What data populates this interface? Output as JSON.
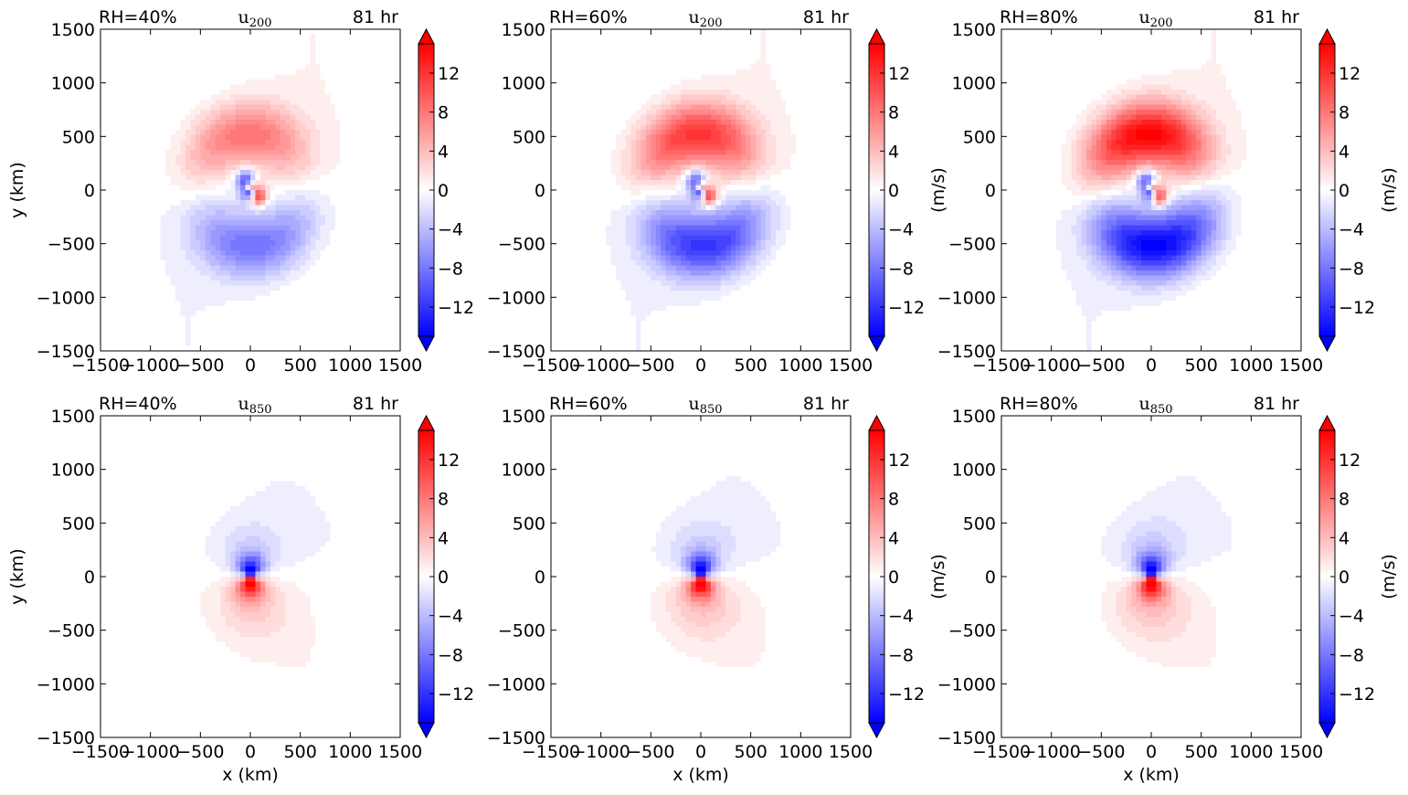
{
  "chart_data": [
    {
      "type": "heatmap",
      "rh_label": "RH=40%",
      "var_base": "u",
      "var_sub": "200",
      "time_label": "81 hr",
      "xlabel": "",
      "ylabel": "y (km)",
      "cbar_label": "",
      "xlim": [
        -1500,
        1500
      ],
      "ylim": [
        -1500,
        1500
      ],
      "xticks": [
        "−1500",
        "−1000",
        "−500",
        "0",
        "500",
        "1000",
        "1500"
      ],
      "yticks": [
        "−1500",
        "−1000",
        "−500",
        "0",
        "500",
        "1000",
        "1500"
      ],
      "vmin": -15,
      "vmax": 15,
      "cbar_ticks": [
        "−12",
        "−8",
        "−4",
        "0",
        "4",
        "8",
        "12"
      ],
      "level": 200,
      "strength": 0.55
    },
    {
      "type": "heatmap",
      "rh_label": "RH=60%",
      "var_base": "u",
      "var_sub": "200",
      "time_label": "81 hr",
      "xlabel": "",
      "ylabel": "",
      "cbar_label": "(m/s)",
      "xlim": [
        -1500,
        1500
      ],
      "ylim": [
        -1500,
        1500
      ],
      "xticks": [
        "−1500",
        "−1000",
        "−500",
        "0",
        "500",
        "1000",
        "1500"
      ],
      "yticks": [
        "−1500",
        "−1000",
        "−500",
        "0",
        "500",
        "1000",
        "1500"
      ],
      "vmin": -15,
      "vmax": 15,
      "cbar_ticks": [
        "−12",
        "−8",
        "−4",
        "0",
        "4",
        "8",
        "12"
      ],
      "level": 200,
      "strength": 0.8
    },
    {
      "type": "heatmap",
      "rh_label": "RH=80%",
      "var_base": "u",
      "var_sub": "200",
      "time_label": "81 hr",
      "xlabel": "",
      "ylabel": "",
      "cbar_label": "(m/s)",
      "xlim": [
        -1500,
        1500
      ],
      "ylim": [
        -1500,
        1500
      ],
      "xticks": [
        "−1500",
        "−1000",
        "−500",
        "0",
        "500",
        "1000",
        "1500"
      ],
      "yticks": [
        "−1500",
        "−1000",
        "−500",
        "0",
        "500",
        "1000",
        "1500"
      ],
      "vmin": -15,
      "vmax": 15,
      "cbar_ticks": [
        "−12",
        "−8",
        "−4",
        "0",
        "4",
        "8",
        "12"
      ],
      "level": 200,
      "strength": 1.0
    },
    {
      "type": "heatmap",
      "rh_label": "RH=40%",
      "var_base": "u",
      "var_sub": "850",
      "time_label": "81 hr",
      "xlabel": "x (km)",
      "ylabel": "y (km)",
      "cbar_label": "",
      "xlim": [
        -1500,
        1500
      ],
      "ylim": [
        -1500,
        1500
      ],
      "xticks": [
        "−1500",
        "−1000",
        "−500",
        "0",
        "500",
        "1000",
        "1500"
      ],
      "yticks": [
        "−1500",
        "−1000",
        "−500",
        "0",
        "500",
        "1000",
        "1500"
      ],
      "vmin": -15,
      "vmax": 15,
      "cbar_ticks": [
        "−12",
        "−8",
        "−4",
        "0",
        "4",
        "8",
        "12"
      ],
      "level": 850,
      "strength": 0.85
    },
    {
      "type": "heatmap",
      "rh_label": "RH=60%",
      "var_base": "u",
      "var_sub": "850",
      "time_label": "81 hr",
      "xlabel": "x (km)",
      "ylabel": "",
      "cbar_label": "(m/s)",
      "xlim": [
        -1500,
        1500
      ],
      "ylim": [
        -1500,
        1500
      ],
      "xticks": [
        "−1500",
        "−1000",
        "−500",
        "0",
        "500",
        "1000",
        "1500"
      ],
      "yticks": [
        "−1500",
        "−1000",
        "−500",
        "0",
        "500",
        "1000",
        "1500"
      ],
      "vmin": -15,
      "vmax": 15,
      "cbar_ticks": [
        "−12",
        "−8",
        "−4",
        "0",
        "4",
        "8",
        "12"
      ],
      "level": 850,
      "strength": 0.95
    },
    {
      "type": "heatmap",
      "rh_label": "RH=80%",
      "var_base": "u",
      "var_sub": "850",
      "time_label": "81 hr",
      "xlabel": "x (km)",
      "ylabel": "",
      "cbar_label": "(m/s)",
      "xlim": [
        -1500,
        1500
      ],
      "ylim": [
        -1500,
        1500
      ],
      "xticks": [
        "−1500",
        "−1000",
        "−500",
        "0",
        "500",
        "1000",
        "1500"
      ],
      "yticks": [
        "−1500",
        "−1000",
        "−500",
        "0",
        "500",
        "1000",
        "1500"
      ],
      "vmin": -15,
      "vmax": 15,
      "cbar_ticks": [
        "−12",
        "−8",
        "−4",
        "0",
        "4",
        "8",
        "12"
      ],
      "level": 850,
      "strength": 1.0
    }
  ],
  "colors": {
    "negative": "#0000ff",
    "zero": "#ffffff",
    "positive": "#ff0000"
  }
}
